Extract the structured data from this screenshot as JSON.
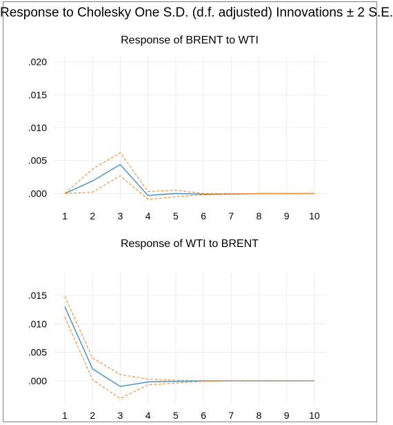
{
  "title": "Response to Cholesky One S.D. (d.f. adjusted) Innovations ± 2 S.E.",
  "colors": {
    "response": "#3d8fc0",
    "bands": "#f08a2c",
    "grid": "#ececec"
  },
  "chart_data": [
    {
      "type": "line",
      "title": "Response of BRENT to WTI",
      "x": [
        1,
        2,
        3,
        4,
        5,
        6,
        7,
        8,
        9,
        10
      ],
      "ylim": [
        -0.001,
        0.021
      ],
      "yticks": [
        0.0,
        0.005,
        0.01,
        0.015,
        0.02
      ],
      "ytick_labels": [
        ".000",
        ".005",
        ".010",
        ".015",
        ".020"
      ],
      "grid": true,
      "series": [
        {
          "role": "response",
          "values": [
            0.0,
            0.0019,
            0.0044,
            -0.0003,
            0.0,
            -0.0001,
            -0.0001,
            0.0,
            0.0,
            0.0
          ]
        },
        {
          "role": "upper",
          "values": [
            0.0,
            0.0037,
            0.0062,
            0.0003,
            0.0005,
            0.0,
            0.0,
            0.0,
            0.0,
            0.0
          ]
        },
        {
          "role": "lower",
          "values": [
            0.0,
            0.0002,
            0.0027,
            -0.0009,
            -0.0005,
            -0.0002,
            -0.0001,
            0.0,
            0.0,
            0.0
          ]
        }
      ]
    },
    {
      "type": "line",
      "title": "Response of WTI to BRENT",
      "x": [
        1,
        2,
        3,
        4,
        5,
        6,
        7,
        8,
        9,
        10
      ],
      "ylim": [
        -0.004,
        0.019
      ],
      "yticks": [
        0.0,
        0.005,
        0.01,
        0.015
      ],
      "ytick_labels": [
        ".000",
        ".005",
        ".010",
        ".015"
      ],
      "grid": true,
      "series": [
        {
          "role": "response",
          "values": [
            0.013,
            0.0021,
            -0.001,
            -0.0002,
            -0.0001,
            0.0,
            0.0,
            0.0,
            0.0,
            0.0
          ]
        },
        {
          "role": "upper",
          "values": [
            0.0148,
            0.004,
            0.0011,
            0.0003,
            0.0001,
            0.0,
            0.0,
            0.0,
            0.0,
            0.0
          ]
        },
        {
          "role": "lower",
          "values": [
            0.0112,
            0.0002,
            -0.0031,
            -0.0007,
            -0.0004,
            -0.0001,
            0.0,
            0.0,
            0.0,
            0.0
          ]
        }
      ]
    }
  ]
}
